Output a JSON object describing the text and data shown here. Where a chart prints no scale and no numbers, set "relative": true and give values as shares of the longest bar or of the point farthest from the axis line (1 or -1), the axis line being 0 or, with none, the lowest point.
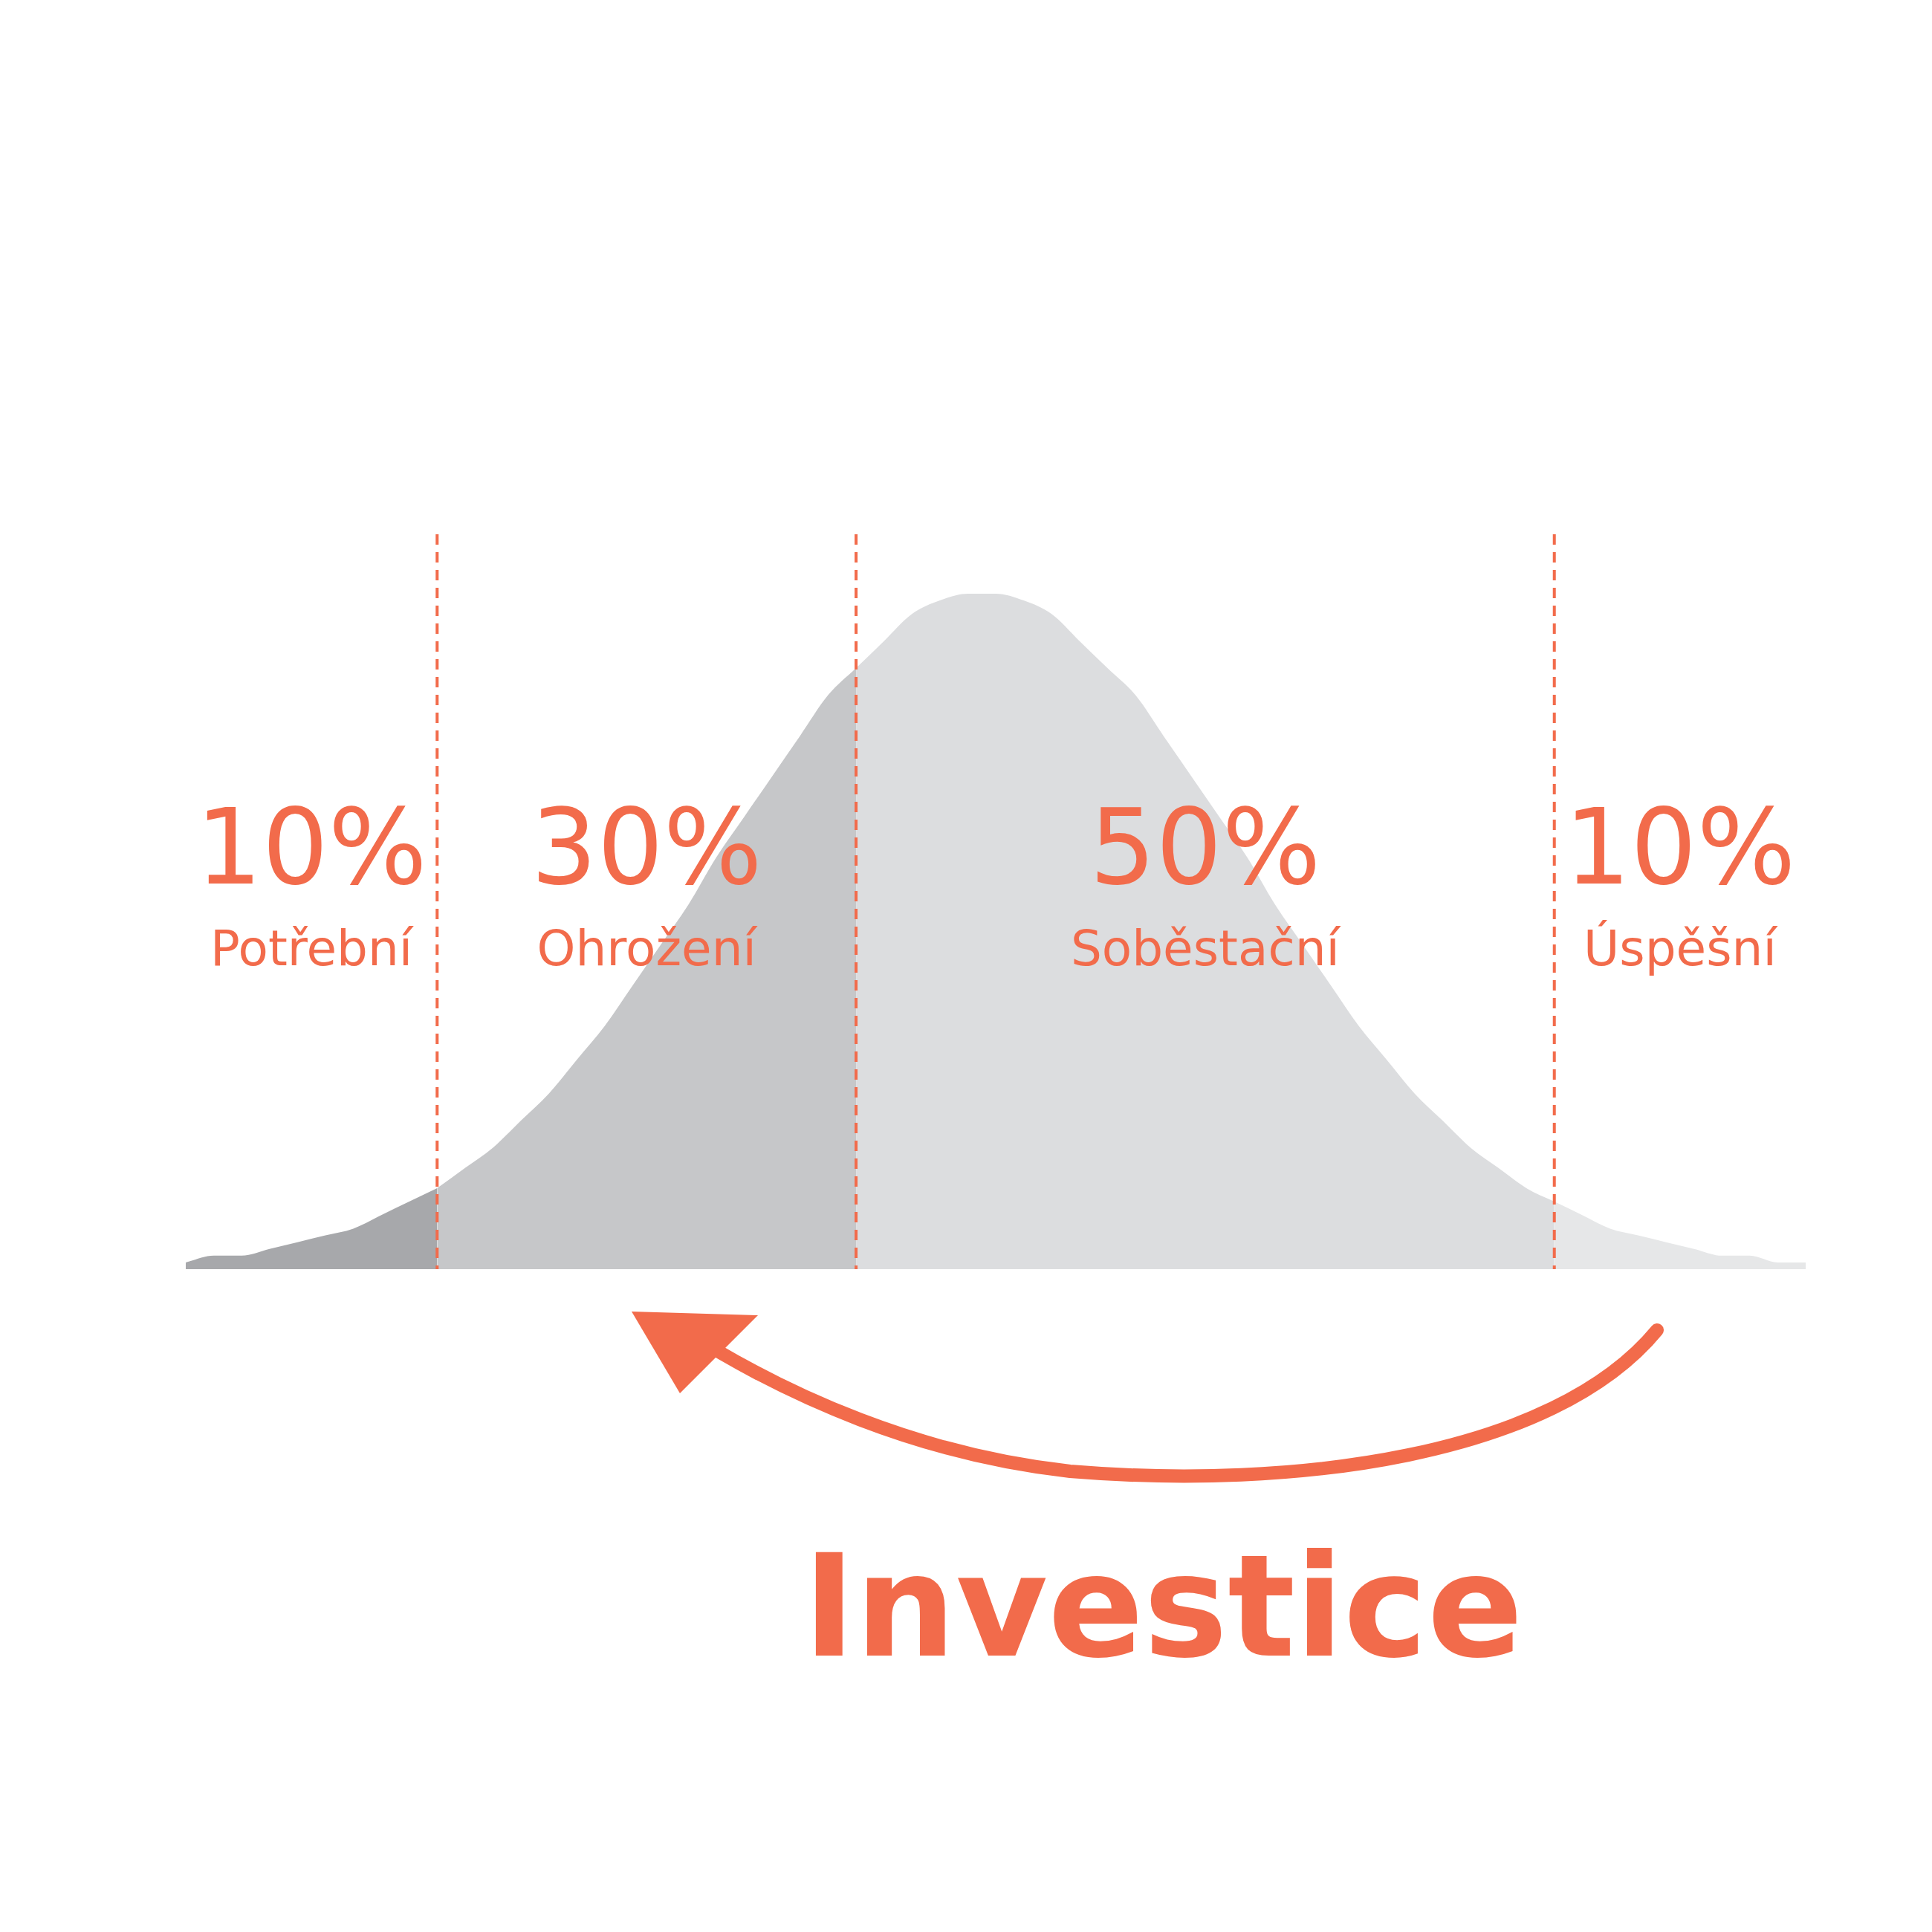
{
  "chart_data": {
    "type": "area",
    "relative": true,
    "grid": "x",
    "categories": [
      null,
      null,
      null,
      null,
      null,
      null,
      null,
      null,
      null,
      null,
      null,
      null,
      null,
      null,
      null,
      null,
      null,
      null,
      null,
      null,
      null,
      null,
      null,
      null,
      null,
      null,
      null,
      null,
      null,
      null,
      null,
      null,
      null,
      null,
      null,
      null,
      null,
      null,
      null,
      null,
      null,
      null,
      null,
      null,
      null,
      null,
      null,
      null,
      null,
      null,
      null,
      null,
      null,
      null,
      null,
      null,
      null,
      null,
      null
    ],
    "series": [
      {
        "color": "#a7a8ab",
        "values": [
          0.01,
          0.02,
          0.02,
          0.03,
          0.04,
          0.05,
          0.06,
          0.08,
          0.1,
          0.12,
          null,
          null,
          null,
          null,
          null,
          null,
          null,
          null,
          null,
          null,
          null,
          null,
          null,
          null,
          null,
          null,
          null,
          null,
          null,
          null,
          null,
          null,
          null,
          null,
          null,
          null,
          null,
          null,
          null,
          null,
          null,
          null,
          null,
          null,
          null,
          null,
          null,
          null,
          null,
          null,
          null,
          null,
          null,
          null,
          null,
          null,
          null,
          null,
          null
        ]
      },
      {
        "color": "#c6c7c9",
        "values": [
          null,
          null,
          null,
          null,
          null,
          null,
          null,
          null,
          null,
          0.12,
          0.15,
          0.18,
          0.22,
          0.26,
          0.31,
          0.36,
          0.42,
          0.48,
          0.54,
          0.61,
          0.67,
          0.73,
          0.79,
          0.85,
          0.89,
          null,
          null,
          null,
          null,
          null,
          null,
          null,
          null,
          null,
          null,
          null,
          null,
          null,
          null,
          null,
          null,
          null,
          null,
          null,
          null,
          null,
          null,
          null,
          null,
          null,
          null,
          null,
          null,
          null,
          null,
          null,
          null,
          null,
          null
        ]
      },
      {
        "color": "#dcdddf",
        "values": [
          null,
          null,
          null,
          null,
          null,
          null,
          null,
          null,
          null,
          null,
          null,
          null,
          null,
          null,
          null,
          null,
          null,
          null,
          null,
          null,
          null,
          null,
          null,
          null,
          0.89,
          0.93,
          0.97,
          0.99,
          1,
          1,
          0.99,
          0.97,
          0.93,
          0.89,
          0.85,
          0.79,
          0.73,
          0.67,
          0.61,
          0.54,
          0.48,
          0.42,
          0.36,
          0.31,
          0.26,
          0.22,
          0.18,
          0.15,
          0.12,
          0.1,
          null,
          null,
          null,
          null,
          null,
          null,
          null,
          null,
          null
        ]
      },
      {
        "color": "#e6e7e8",
        "values": [
          null,
          null,
          null,
          null,
          null,
          null,
          null,
          null,
          null,
          null,
          null,
          null,
          null,
          null,
          null,
          null,
          null,
          null,
          null,
          null,
          null,
          null,
          null,
          null,
          null,
          null,
          null,
          null,
          null,
          null,
          null,
          null,
          null,
          null,
          null,
          null,
          null,
          null,
          null,
          null,
          null,
          null,
          null,
          null,
          null,
          null,
          null,
          null,
          null,
          0.1,
          0.08,
          0.06,
          0.05,
          0.04,
          0.03,
          0.02,
          0.02,
          0.01,
          0.01
        ]
      }
    ],
    "annotations": [
      "10%",
      "Potřební",
      "30%",
      "Ohrožení",
      "50%",
      "Soběstační",
      "10%",
      "Úspěšní",
      "Investice"
    ]
  }
}
